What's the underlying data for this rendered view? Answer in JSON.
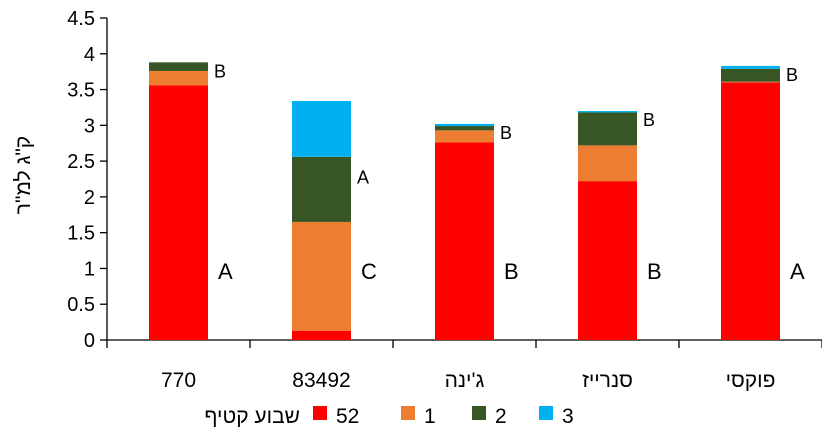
{
  "chart_data": {
    "type": "bar",
    "stacked": true,
    "ylabel": "ק\"ג למ\"ר",
    "ylim": [
      0,
      4.5
    ],
    "yticks": [
      "0",
      "0.5",
      "1",
      "1.5",
      "2",
      "2.5",
      "3",
      "3.5",
      "4",
      "4.5"
    ],
    "categories": [
      "770",
      "83492",
      "ג'ינה",
      "סנרייז",
      "פוקסי"
    ],
    "series": [
      {
        "name": "52",
        "color": "#ff0000",
        "values": [
          3.56,
          0.13,
          2.76,
          2.22,
          3.6
        ]
      },
      {
        "name": "1",
        "color": "#ed7d31",
        "values": [
          0.2,
          1.52,
          0.17,
          0.5,
          0.01
        ]
      },
      {
        "name": "2",
        "color": "#375623",
        "values": [
          0.12,
          0.91,
          0.06,
          0.46,
          0.18
        ]
      },
      {
        "name": "3",
        "color": "#00b0f0",
        "values": [
          0.0,
          0.78,
          0.03,
          0.02,
          0.04
        ]
      }
    ],
    "annotations_bottom": [
      "A",
      "C",
      "B",
      "B",
      "A"
    ],
    "annotations_top": [
      "B",
      "A",
      "B",
      "B",
      "B"
    ],
    "legend_title": "שבוע קטיף",
    "legend_position": "bottom",
    "grid": false
  }
}
